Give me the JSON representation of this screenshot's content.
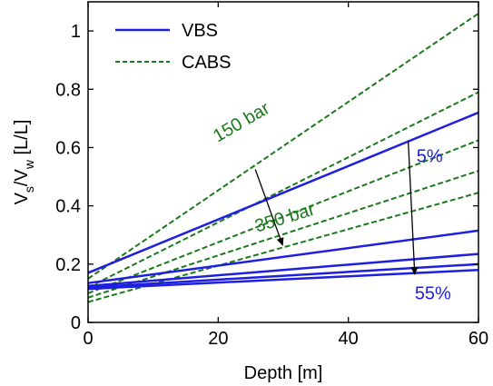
{
  "chart_data": {
    "type": "line",
    "xlabel": "Depth [m]",
    "ylabel_parts": {
      "V1": "V",
      "s": "s",
      "slash": "/V",
      "w": "w",
      "unit": " [L/L]"
    },
    "xlim": [
      0,
      60
    ],
    "ylim": [
      0,
      1.1
    ],
    "xticks": [
      0,
      20,
      40,
      60
    ],
    "xtick_labels": [
      "0",
      "20",
      "40",
      "60"
    ],
    "yticks": [
      0,
      0.2,
      0.4,
      0.6,
      0.8,
      1
    ],
    "ytick_labels": [
      "0",
      "0.2",
      "0.4",
      "0.6",
      "0.8",
      "1"
    ],
    "grid": false,
    "legend_position": "top-left",
    "legend": [
      {
        "label": "VBS",
        "style": "solid",
        "color": "#1f1fe0"
      },
      {
        "label": "CABS",
        "style": "dashed",
        "color": "#1b7a1b"
      }
    ],
    "vbs_series": [
      {
        "x": [
          0,
          60
        ],
        "y": [
          0.17,
          0.72
        ]
      },
      {
        "x": [
          0,
          60
        ],
        "y": [
          0.135,
          0.315
        ]
      },
      {
        "x": [
          0,
          60
        ],
        "y": [
          0.125,
          0.235
        ]
      },
      {
        "x": [
          0,
          60
        ],
        "y": [
          0.12,
          0.2
        ]
      },
      {
        "x": [
          0,
          60
        ],
        "y": [
          0.115,
          0.18
        ]
      }
    ],
    "cabs_series": [
      {
        "x": [
          0,
          60
        ],
        "y": [
          0.15,
          1.06
        ]
      },
      {
        "x": [
          0,
          60
        ],
        "y": [
          0.12,
          0.79
        ]
      },
      {
        "x": [
          0,
          60
        ],
        "y": [
          0.1,
          0.625
        ]
      },
      {
        "x": [
          0,
          60
        ],
        "y": [
          0.085,
          0.52
        ]
      },
      {
        "x": [
          0,
          60
        ],
        "y": [
          0.07,
          0.445
        ]
      }
    ],
    "annotations": [
      {
        "text": "150 bar",
        "color": "#1b7a1b",
        "x": 24,
        "y": 0.67,
        "rotate": -30
      },
      {
        "text": "350 bar",
        "color": "#1b7a1b",
        "x": 30.5,
        "y": 0.34,
        "rotate": -17
      },
      {
        "text": "5%",
        "color": "#1f1fe0",
        "x": 52.5,
        "y": 0.55,
        "rotate": 0
      },
      {
        "text": "55%",
        "color": "#1f1fe0",
        "x": 53,
        "y": 0.08,
        "rotate": 0
      }
    ],
    "arrows": [
      {
        "x1": 25.7,
        "y1": 0.525,
        "x2": 29.9,
        "y2": 0.265
      },
      {
        "x1": 49.2,
        "y1": 0.625,
        "x2": 50.2,
        "y2": 0.165
      }
    ]
  }
}
